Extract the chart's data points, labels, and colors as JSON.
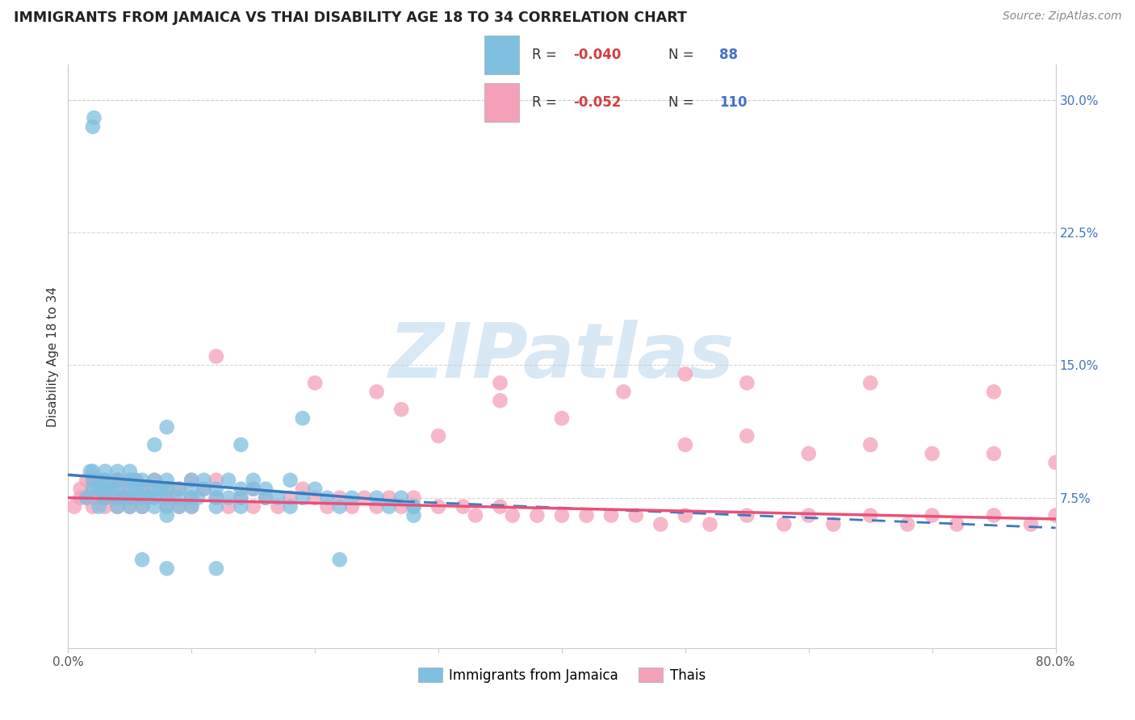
{
  "title": "IMMIGRANTS FROM JAMAICA VS THAI DISABILITY AGE 18 TO 34 CORRELATION CHART",
  "source": "Source: ZipAtlas.com",
  "ylabel": "Disability Age 18 to 34",
  "xlim": [
    0.0,
    0.8
  ],
  "ylim": [
    -0.01,
    0.32
  ],
  "xticks": [
    0.0,
    0.1,
    0.2,
    0.3,
    0.4,
    0.5,
    0.6,
    0.7,
    0.8
  ],
  "xticklabels": [
    "0.0%",
    "",
    "",
    "",
    "",
    "",
    "",
    "",
    "80.0%"
  ],
  "yticks": [
    0.075,
    0.15,
    0.225,
    0.3
  ],
  "yticklabels_right": [
    "7.5%",
    "15.0%",
    "22.5%",
    "30.0%"
  ],
  "jamaica_color": "#7fbfdf",
  "thai_color": "#f4a0b8",
  "jamaica_R": -0.04,
  "jamaica_N": 88,
  "thai_R": -0.052,
  "thai_N": 110,
  "legend_label_jamaica": "Immigrants from Jamaica",
  "legend_label_thai": "Thais",
  "watermark": "ZIPatlas",
  "background_color": "#ffffff",
  "grid_color": "#cccccc",
  "jamaica_trend_color": "#3a7abf",
  "thai_trend_color": "#e8507a",
  "jamaica_points_x": [
    0.015,
    0.018,
    0.02,
    0.02,
    0.02,
    0.025,
    0.025,
    0.028,
    0.03,
    0.03,
    0.03,
    0.03,
    0.03,
    0.035,
    0.04,
    0.04,
    0.04,
    0.04,
    0.04,
    0.045,
    0.05,
    0.05,
    0.05,
    0.05,
    0.05,
    0.055,
    0.055,
    0.06,
    0.06,
    0.06,
    0.06,
    0.065,
    0.07,
    0.07,
    0.07,
    0.07,
    0.075,
    0.08,
    0.08,
    0.08,
    0.08,
    0.08,
    0.09,
    0.09,
    0.09,
    0.1,
    0.1,
    0.1,
    0.1,
    0.105,
    0.11,
    0.11,
    0.12,
    0.12,
    0.12,
    0.13,
    0.13,
    0.14,
    0.14,
    0.14,
    0.15,
    0.15,
    0.16,
    0.16,
    0.17,
    0.18,
    0.18,
    0.19,
    0.2,
    0.21,
    0.22,
    0.23,
    0.25,
    0.26,
    0.27,
    0.28,
    0.02,
    0.021,
    0.07,
    0.08,
    0.14,
    0.19,
    0.06,
    0.08,
    0.12,
    0.22,
    0.28,
    0.28
  ],
  "jamaica_points_y": [
    0.075,
    0.09,
    0.08,
    0.085,
    0.09,
    0.07,
    0.08,
    0.085,
    0.075,
    0.085,
    0.09,
    0.08,
    0.075,
    0.08,
    0.085,
    0.075,
    0.07,
    0.09,
    0.08,
    0.075,
    0.085,
    0.08,
    0.075,
    0.09,
    0.07,
    0.08,
    0.085,
    0.075,
    0.085,
    0.08,
    0.07,
    0.075,
    0.085,
    0.08,
    0.075,
    0.07,
    0.08,
    0.085,
    0.075,
    0.08,
    0.07,
    0.065,
    0.08,
    0.075,
    0.07,
    0.085,
    0.075,
    0.08,
    0.07,
    0.075,
    0.08,
    0.085,
    0.075,
    0.08,
    0.07,
    0.085,
    0.075,
    0.08,
    0.075,
    0.07,
    0.085,
    0.08,
    0.075,
    0.08,
    0.075,
    0.085,
    0.07,
    0.075,
    0.08,
    0.075,
    0.07,
    0.075,
    0.075,
    0.07,
    0.075,
    0.07,
    0.285,
    0.29,
    0.105,
    0.115,
    0.105,
    0.12,
    0.04,
    0.035,
    0.035,
    0.04,
    0.065,
    0.07
  ],
  "thai_points_x": [
    0.005,
    0.01,
    0.01,
    0.015,
    0.015,
    0.02,
    0.02,
    0.02,
    0.025,
    0.025,
    0.025,
    0.03,
    0.03,
    0.03,
    0.03,
    0.035,
    0.035,
    0.04,
    0.04,
    0.04,
    0.04,
    0.04,
    0.045,
    0.05,
    0.05,
    0.05,
    0.05,
    0.055,
    0.055,
    0.06,
    0.06,
    0.06,
    0.065,
    0.07,
    0.07,
    0.075,
    0.08,
    0.08,
    0.08,
    0.085,
    0.09,
    0.09,
    0.1,
    0.1,
    0.1,
    0.11,
    0.12,
    0.12,
    0.13,
    0.14,
    0.15,
    0.15,
    0.16,
    0.17,
    0.18,
    0.19,
    0.2,
    0.21,
    0.22,
    0.23,
    0.24,
    0.25,
    0.26,
    0.27,
    0.28,
    0.3,
    0.32,
    0.33,
    0.35,
    0.36,
    0.38,
    0.4,
    0.42,
    0.44,
    0.46,
    0.48,
    0.5,
    0.52,
    0.55,
    0.58,
    0.6,
    0.62,
    0.65,
    0.68,
    0.7,
    0.72,
    0.75,
    0.78,
    0.8,
    0.3,
    0.4,
    0.5,
    0.55,
    0.6,
    0.65,
    0.7,
    0.75,
    0.8,
    0.27,
    0.35,
    0.45,
    0.55,
    0.65,
    0.75,
    0.12,
    0.2,
    0.25,
    0.35,
    0.5,
    0.02
  ],
  "thai_points_y": [
    0.07,
    0.075,
    0.08,
    0.085,
    0.075,
    0.08,
    0.085,
    0.07,
    0.075,
    0.085,
    0.08,
    0.085,
    0.075,
    0.08,
    0.07,
    0.075,
    0.08,
    0.085,
    0.075,
    0.08,
    0.085,
    0.07,
    0.075,
    0.085,
    0.075,
    0.08,
    0.07,
    0.085,
    0.075,
    0.08,
    0.075,
    0.07,
    0.08,
    0.075,
    0.085,
    0.08,
    0.075,
    0.08,
    0.07,
    0.075,
    0.08,
    0.07,
    0.075,
    0.085,
    0.07,
    0.08,
    0.075,
    0.085,
    0.07,
    0.075,
    0.07,
    0.08,
    0.075,
    0.07,
    0.075,
    0.08,
    0.075,
    0.07,
    0.075,
    0.07,
    0.075,
    0.07,
    0.075,
    0.07,
    0.075,
    0.07,
    0.07,
    0.065,
    0.07,
    0.065,
    0.065,
    0.065,
    0.065,
    0.065,
    0.065,
    0.06,
    0.065,
    0.06,
    0.065,
    0.06,
    0.065,
    0.06,
    0.065,
    0.06,
    0.065,
    0.06,
    0.065,
    0.06,
    0.065,
    0.11,
    0.12,
    0.105,
    0.11,
    0.1,
    0.105,
    0.1,
    0.1,
    0.095,
    0.125,
    0.13,
    0.135,
    0.14,
    0.14,
    0.135,
    0.155,
    0.14,
    0.135,
    0.14,
    0.145,
    0.075
  ]
}
